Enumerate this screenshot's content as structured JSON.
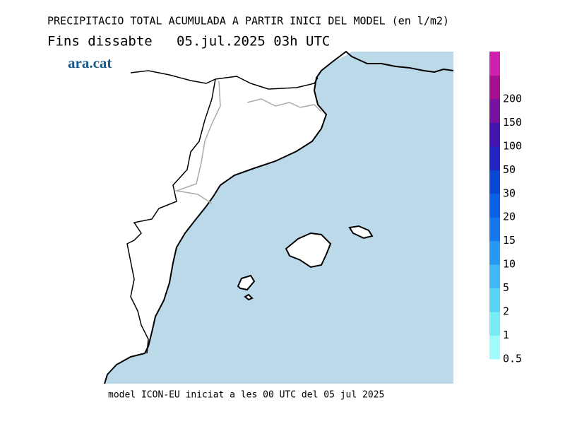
{
  "header": {
    "title": "PRECIPITACIO TOTAL ACUMULADA A PARTIR INICI DEL MODEL (en l/m2)",
    "subtitle": "Fins dissabte   05.jul.2025 03h UTC",
    "logo": "ara.cat"
  },
  "footer": "model ICON-EU iniciat a les 00 UTC del 05 jul 2025",
  "legend": {
    "labels": [
      "0.5",
      "1",
      "2",
      "5",
      "10",
      "15",
      "20",
      "30",
      "50",
      "100",
      "150",
      "200"
    ],
    "colors": [
      "#a0fcfc",
      "#78ecf4",
      "#58d4f4",
      "#40b8f4",
      "#2898f0",
      "#1478ec",
      "#0a60e4",
      "#0848d4",
      "#2424c0",
      "#4414b0",
      "#7810a0",
      "#a41090",
      "#d020b0"
    ]
  }
}
